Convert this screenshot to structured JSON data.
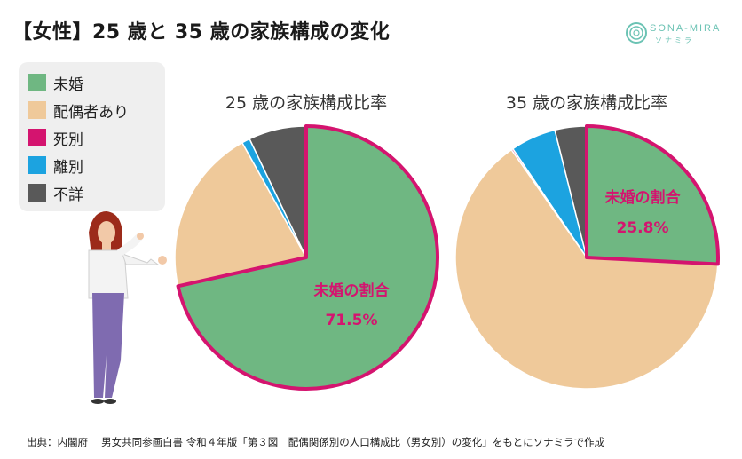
{
  "header": {
    "title": "【女性】25 歳と 35 歳の家族構成の変化",
    "logo_text": "SONA-MIRA",
    "logo_sub": "ソナミラ"
  },
  "legend": {
    "items": [
      {
        "label": "未婚",
        "color": "#6fb782"
      },
      {
        "label": "配偶者あり",
        "color": "#efc99a"
      },
      {
        "label": "死別",
        "color": "#d4146f"
      },
      {
        "label": "離別",
        "color": "#1ca3e0"
      },
      {
        "label": "不詳",
        "color": "#595959"
      }
    ]
  },
  "chart_data": [
    {
      "type": "pie",
      "title": "25 歳の家族構成比率",
      "slices": [
        {
          "label": "未婚",
          "value": 71.5,
          "color": "#6fb782"
        },
        {
          "label": "配偶者あり",
          "value": 20.4,
          "color": "#efc99a"
        },
        {
          "label": "死別",
          "value": 0.0,
          "color": "#d4146f"
        },
        {
          "label": "離別",
          "value": 1.0,
          "color": "#1ca3e0"
        },
        {
          "label": "不詳",
          "value": 7.1,
          "color": "#595959"
        }
      ],
      "annotation": {
        "label": "未婚の割合",
        "value_text": "71.5%"
      }
    },
    {
      "type": "pie",
      "title": "35 歳の家族構成比率",
      "slices": [
        {
          "label": "未婚",
          "value": 25.8,
          "color": "#6fb782"
        },
        {
          "label": "配偶者あり",
          "value": 64.5,
          "color": "#efc99a"
        },
        {
          "label": "死別",
          "value": 0.2,
          "color": "#d4146f"
        },
        {
          "label": "離別",
          "value": 5.6,
          "color": "#1ca3e0"
        },
        {
          "label": "不詳",
          "value": 3.9,
          "color": "#595959"
        }
      ],
      "annotation": {
        "label": "未婚の割合",
        "value_text": "25.8%"
      }
    }
  ],
  "highlight_color": "#d4146f",
  "source": "出典：内閣府　 男女共同参画白書 令和４年版「第３図　配偶関係別の人口構成比（男女別）の変化」をもとにソナミラで作成"
}
